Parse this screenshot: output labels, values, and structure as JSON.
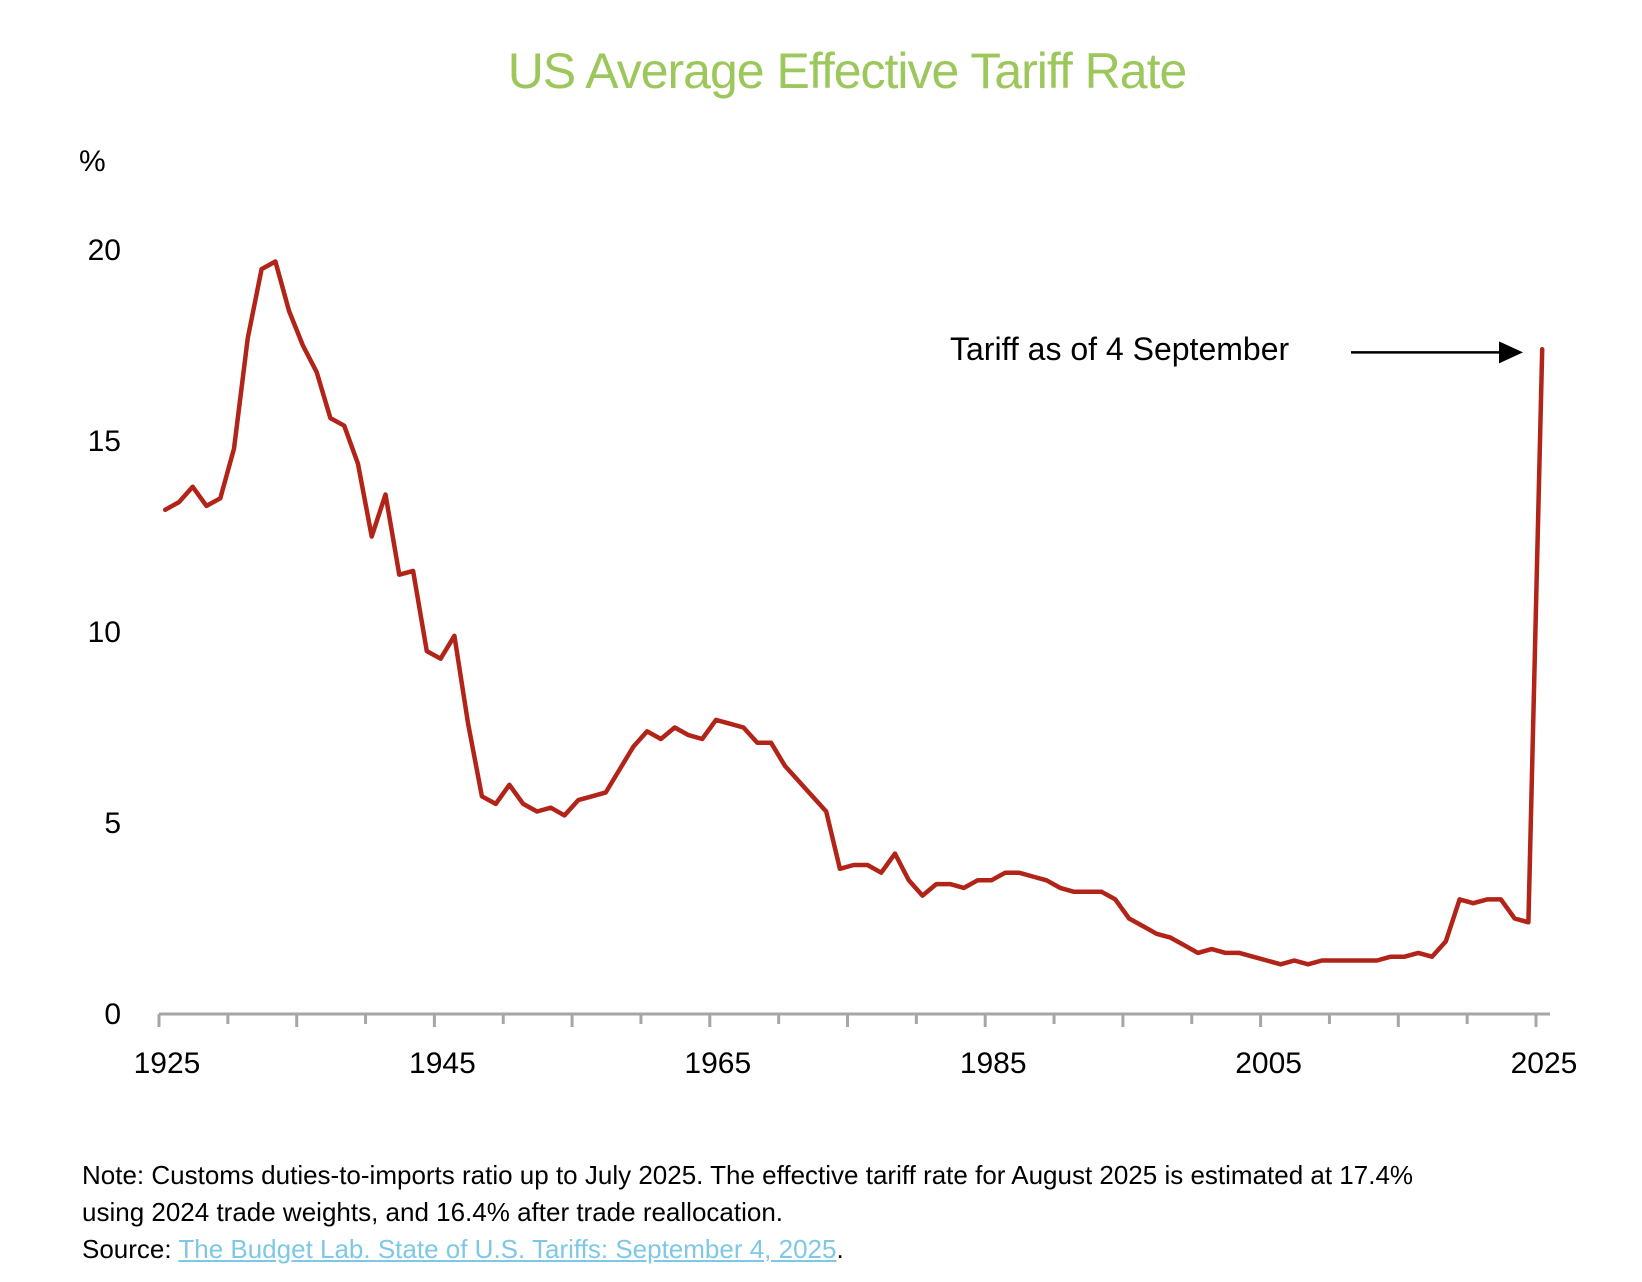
{
  "chart_data": {
    "type": "line",
    "title": "US Average Effective Tariff Rate",
    "xlabel": "",
    "ylabel": "%",
    "xlim": [
      1925,
      2025
    ],
    "ylim": [
      0,
      20
    ],
    "x_ticks": [
      1925,
      1945,
      1965,
      1985,
      2005,
      2025
    ],
    "x_minor_ticks_every": 5,
    "y_ticks": [
      0,
      5,
      10,
      15,
      20
    ],
    "grid": false,
    "legend": "none",
    "series": [
      {
        "name": "US Average Effective Tariff Rate",
        "color": "#B22318",
        "x": [
          1925,
          1926,
          1927,
          1928,
          1929,
          1930,
          1931,
          1932,
          1933,
          1934,
          1935,
          1936,
          1937,
          1938,
          1939,
          1940,
          1941,
          1942,
          1943,
          1944,
          1945,
          1946,
          1947,
          1948,
          1949,
          1950,
          1951,
          1952,
          1953,
          1954,
          1955,
          1956,
          1957,
          1958,
          1959,
          1960,
          1961,
          1962,
          1963,
          1964,
          1965,
          1966,
          1967,
          1968,
          1969,
          1970,
          1971,
          1972,
          1973,
          1974,
          1975,
          1976,
          1977,
          1978,
          1979,
          1980,
          1981,
          1982,
          1983,
          1984,
          1985,
          1986,
          1987,
          1988,
          1989,
          1990,
          1991,
          1992,
          1993,
          1994,
          1995,
          1996,
          1997,
          1998,
          1999,
          2000,
          2001,
          2002,
          2003,
          2004,
          2005,
          2006,
          2007,
          2008,
          2009,
          2010,
          2011,
          2012,
          2013,
          2014,
          2015,
          2016,
          2017,
          2018,
          2019,
          2020,
          2021,
          2022,
          2023,
          2024,
          2025
        ],
        "values": [
          13.2,
          13.4,
          13.8,
          13.3,
          13.5,
          14.8,
          17.7,
          19.5,
          19.7,
          18.4,
          17.5,
          16.8,
          15.6,
          15.4,
          14.4,
          12.5,
          13.6,
          11.5,
          11.6,
          9.5,
          9.3,
          9.9,
          7.6,
          5.7,
          5.5,
          6.0,
          5.5,
          5.3,
          5.4,
          5.2,
          5.6,
          5.7,
          5.8,
          6.4,
          7.0,
          7.4,
          7.2,
          7.5,
          7.3,
          7.2,
          7.7,
          7.6,
          7.5,
          7.1,
          7.1,
          6.5,
          6.1,
          5.7,
          5.3,
          3.8,
          3.9,
          3.9,
          3.7,
          4.2,
          3.5,
          3.1,
          3.4,
          3.4,
          3.3,
          3.5,
          3.5,
          3.7,
          3.7,
          3.6,
          3.5,
          3.3,
          3.2,
          3.2,
          3.2,
          3.0,
          2.5,
          2.3,
          2.1,
          2.0,
          1.8,
          1.6,
          1.7,
          1.6,
          1.6,
          1.5,
          1.4,
          1.3,
          1.4,
          1.3,
          1.4,
          1.4,
          1.4,
          1.4,
          1.4,
          1.5,
          1.5,
          1.6,
          1.5,
          1.9,
          3.0,
          2.9,
          3.0,
          3.0,
          2.5,
          2.4,
          17.4
        ]
      }
    ],
    "annotations": [
      {
        "text": "Tariff as of 4 September",
        "arrow": "right",
        "points_to": {
          "x": 2025,
          "y": 17.4
        }
      }
    ]
  },
  "note": {
    "line1": "Note: Customs duties-to-imports ratio up to July 2025. The effective tariff rate for August 2025 is estimated at 17.4%",
    "line2": "using 2024 trade weights, and 16.4% after trade reallocation.",
    "source_label": "Source: ",
    "source_link_text": "The Budget Lab. State of U.S. Tariffs: September 4, 2025",
    "source_suffix": "."
  },
  "colors": {
    "title": "#9CC75B",
    "line": "#B22318",
    "axis": "#A6A6A6",
    "link": "#7EC8E6"
  }
}
